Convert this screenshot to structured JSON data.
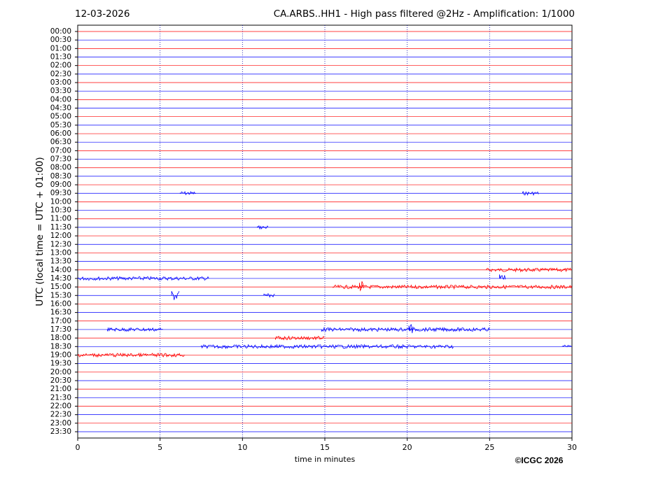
{
  "chart_data": {
    "type": "helicorder",
    "date": "12-03-2026",
    "title": "CA.ARBS..HH1 - High pass filtered @2Hz - Amplification: 1/1000",
    "y_label": "UTC (local time = UTC + 01:00)",
    "x_label": "time in minutes",
    "credit": "©ICGC 2026",
    "xlim": [
      0,
      30
    ],
    "xticks": [
      0,
      5,
      10,
      15,
      20,
      25,
      30
    ],
    "grid": true,
    "row_colors": [
      "#ff0000",
      "#0000ff"
    ],
    "categories": [
      "00:00",
      "00:30",
      "01:00",
      "01:30",
      "02:00",
      "02:30",
      "03:00",
      "03:30",
      "04:00",
      "04:30",
      "05:00",
      "05:30",
      "06:00",
      "06:30",
      "07:00",
      "07:30",
      "08:00",
      "08:30",
      "09:00",
      "09:30",
      "10:00",
      "10:30",
      "11:00",
      "11:30",
      "12:00",
      "12:30",
      "13:00",
      "13:30",
      "14:00",
      "14:30",
      "15:00",
      "15:30",
      "16:00",
      "16:30",
      "17:00",
      "17:30",
      "18:00",
      "18:30",
      "19:00",
      "19:30",
      "20:00",
      "20:30",
      "21:00",
      "21:30",
      "22:00",
      "22:30",
      "23:00",
      "23:30"
    ],
    "bursts": [
      {
        "row": 19,
        "x": [
          6.2,
          7.2
        ]
      },
      {
        "row": 19,
        "x": [
          27.0,
          28.0
        ]
      },
      {
        "row": 23,
        "x": [
          10.9,
          11.6
        ]
      },
      {
        "row": 28,
        "x": [
          24.8,
          30
        ]
      },
      {
        "row": 29,
        "x": [
          0,
          8
        ]
      },
      {
        "row": 29,
        "x": [
          25.6,
          26
        ]
      },
      {
        "row": 30,
        "x": [
          15.5,
          30
        ]
      },
      {
        "row": 30,
        "x": [
          17.1,
          17.4
        ]
      },
      {
        "row": 31,
        "x": [
          5.7,
          6.2
        ]
      },
      {
        "row": 31,
        "x": [
          11.3,
          12
        ]
      },
      {
        "row": 35,
        "x": [
          1.8,
          5.2
        ]
      },
      {
        "row": 35,
        "x": [
          14.8,
          25
        ]
      },
      {
        "row": 35,
        "x": [
          20.1,
          20.4
        ]
      },
      {
        "row": 36,
        "x": [
          12,
          15
        ]
      },
      {
        "row": 37,
        "x": [
          7.5,
          22.8
        ]
      },
      {
        "row": 37,
        "x": [
          29.4,
          30
        ]
      },
      {
        "row": 38,
        "x": [
          0,
          6.5
        ]
      }
    ]
  }
}
